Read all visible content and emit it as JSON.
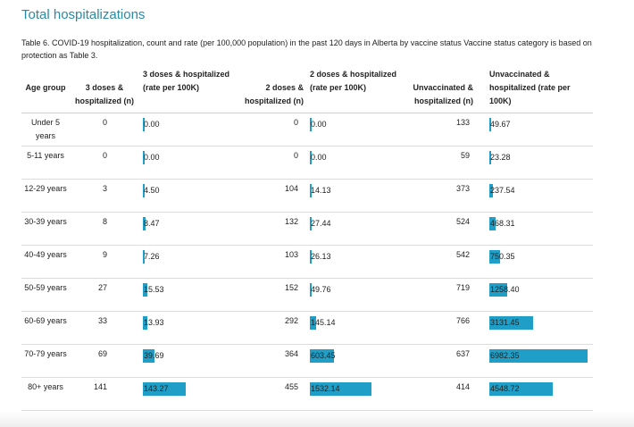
{
  "title": "Total hospitalizations",
  "caption": "Table 6. COVID-19 hospitalization, count and rate (per 100,000 population) in the past 120 days in Alberta by vaccine status Vaccine status category is based on protection as Table 3.",
  "headers": {
    "age_group": "Age group",
    "three_doses_n": "3 doses & hospitalized (n)",
    "three_doses_rate": "3 doses & hospitalized (rate per 100K)",
    "two_doses_n": "2 doses & hospitalized (n)",
    "two_doses_rate": "2 doses & hospitalized (rate per 100K)",
    "unvax_n": "Unvaccinated & hospitalized (n)",
    "unvax_rate": "Unvaccinated & hospitalized (rate per 100K)"
  },
  "bar_color": "#1f9fc7",
  "rows": [
    {
      "age": "Under 5 years",
      "d3_n": "0",
      "d3_rate": "0.00",
      "d2_n": "0",
      "d2_rate": "0.00",
      "un_n": "133",
      "un_rate": "49.67",
      "d3_val": 0.0,
      "d2_val": 0.0,
      "un_val": 49.67
    },
    {
      "age": "5-11 years",
      "d3_n": "0",
      "d3_rate": "0.00",
      "d2_n": "0",
      "d2_rate": "0.00",
      "un_n": "59",
      "un_rate": "23.28",
      "d3_val": 0.0,
      "d2_val": 0.0,
      "un_val": 23.28
    },
    {
      "age": "12-29 years",
      "d3_n": "3",
      "d3_rate": "4.50",
      "d2_n": "104",
      "d2_rate": "14.13",
      "un_n": "373",
      "un_rate": "237.54",
      "d3_val": 4.5,
      "d2_val": 14.13,
      "un_val": 237.54
    },
    {
      "age": "30-39 years",
      "d3_n": "8",
      "d3_rate": "8.47",
      "d2_n": "132",
      "d2_rate": "27.44",
      "un_n": "524",
      "un_rate": "468.31",
      "d3_val": 8.47,
      "d2_val": 27.44,
      "un_val": 468.31
    },
    {
      "age": "40-49 years",
      "d3_n": "9",
      "d3_rate": "7.26",
      "d2_n": "103",
      "d2_rate": "26.13",
      "un_n": "542",
      "un_rate": "750.35",
      "d3_val": 7.26,
      "d2_val": 26.13,
      "un_val": 750.35
    },
    {
      "age": "50-59 years",
      "d3_n": "27",
      "d3_rate": "15.53",
      "d2_n": "152",
      "d2_rate": "49.76",
      "un_n": "719",
      "un_rate": "1258.40",
      "d3_val": 15.53,
      "d2_val": 49.76,
      "un_val": 1258.4
    },
    {
      "age": "60-69 years",
      "d3_n": "33",
      "d3_rate": "13.93",
      "d2_n": "292",
      "d2_rate": "145.14",
      "un_n": "766",
      "un_rate": "3131.45",
      "d3_val": 13.93,
      "d2_val": 145.14,
      "un_val": 3131.45
    },
    {
      "age": "70-79 years",
      "d3_n": "69",
      "d3_rate": "39.69",
      "d2_n": "364",
      "d2_rate": "603.45",
      "un_n": "637",
      "un_rate": "6982.35",
      "d3_val": 39.69,
      "d2_val": 603.45,
      "un_val": 6982.35
    },
    {
      "age": "80+ years",
      "d3_n": "141",
      "d3_rate": "143.27",
      "d2_n": "455",
      "d2_rate": "1532.14",
      "un_n": "414",
      "un_rate": "4548.72",
      "d3_val": 143.27,
      "d2_val": 1532.14,
      "un_val": 4548.72
    }
  ]
}
